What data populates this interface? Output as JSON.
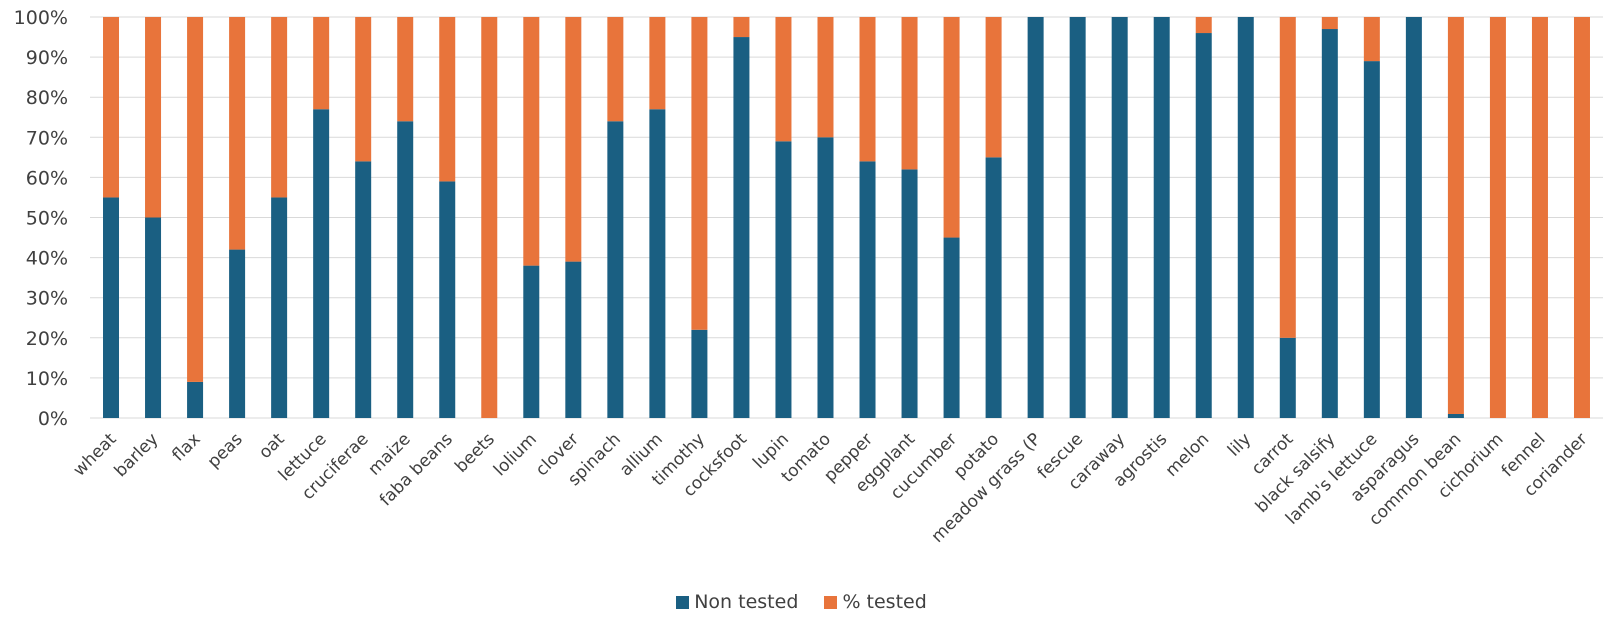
{
  "chart_data": {
    "type": "bar",
    "stacked": true,
    "percent_stacked": true,
    "categories": [
      "wheat",
      "barley",
      "flax",
      "peas",
      "oat",
      "lettuce",
      "cruciferae",
      "maize",
      "faba beans",
      "beets",
      "lolium",
      "clover",
      "spinach",
      "allium",
      "timothy",
      "cocksfoot",
      "lupin",
      "tomato",
      "pepper",
      "eggplant",
      "cucumber",
      "potato",
      "meadow grass (P",
      "fescue",
      "caraway",
      "agrostis",
      "melon",
      "lily",
      "carrot",
      "black salsify",
      "lamb's lettuce",
      "asparagus",
      "common bean",
      "cichorium",
      "fennel",
      "coriander"
    ],
    "series": [
      {
        "name": "Non tested",
        "color": "#1a5f82",
        "values": [
          55,
          50,
          9,
          42,
          55,
          77,
          64,
          74,
          59,
          0,
          38,
          39,
          74,
          77,
          22,
          95,
          69,
          70,
          64,
          62,
          45,
          65,
          100,
          100,
          100,
          100,
          96,
          100,
          20,
          97,
          89,
          100,
          1,
          0,
          0,
          0
        ]
      },
      {
        "name": "% tested",
        "color": "#e8743b",
        "values": [
          45,
          50,
          91,
          58,
          45,
          23,
          36,
          26,
          41,
          100,
          62,
          61,
          26,
          23,
          78,
          5,
          31,
          30,
          36,
          38,
          55,
          35,
          0,
          0,
          0,
          0,
          4,
          0,
          80,
          3,
          11,
          0,
          99,
          100,
          100,
          100
        ]
      }
    ],
    "y_ticks": [
      "0%",
      "10%",
      "20%",
      "30%",
      "40%",
      "50%",
      "60%",
      "70%",
      "80%",
      "90%",
      "100%"
    ],
    "ylim": [
      0,
      100
    ],
    "grid": true,
    "legend_position": "bottom",
    "title": "",
    "xlabel": "",
    "ylabel": ""
  }
}
